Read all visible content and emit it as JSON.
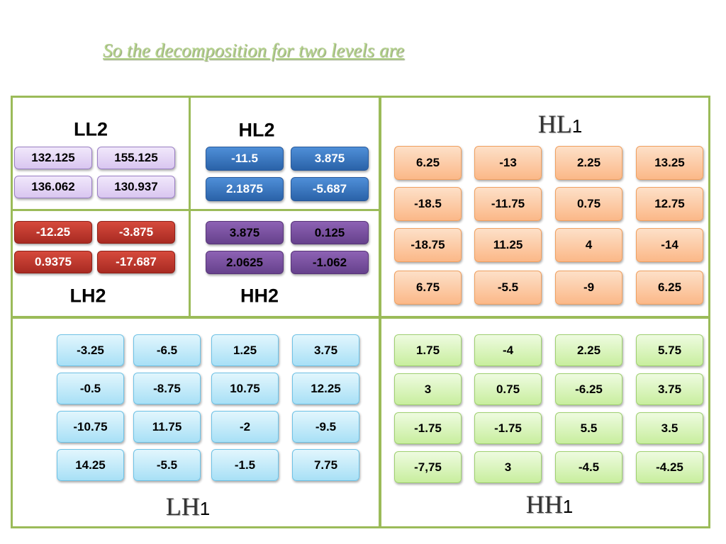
{
  "title": "So the decomposition for two levels are",
  "blocks": [
    {
      "label": "LL2",
      "rows": [
        [
          "132.125",
          "155.125"
        ],
        [
          "136.062",
          "130.937"
        ]
      ]
    },
    {
      "label": "HL2",
      "rows": [
        [
          "-11.5",
          "3.875"
        ],
        [
          "2.1875",
          "-5.687"
        ]
      ]
    },
    {
      "label": "LH2",
      "rows": [
        [
          "-12.25",
          "-3.875"
        ],
        [
          "0.9375",
          "-17.687"
        ]
      ]
    },
    {
      "label": "HH2",
      "rows": [
        [
          "3.875",
          "0.125"
        ],
        [
          "2.0625",
          "-1.062"
        ]
      ]
    },
    {
      "label": "HL",
      "suffix": "1",
      "rows": [
        [
          "6.25",
          "-13",
          "2.25",
          "13.25"
        ],
        [
          "-18.5",
          "-11.75",
          "0.75",
          "12.75"
        ],
        [
          "-18.75",
          "11.25",
          "4",
          "-14"
        ],
        [
          "6.75",
          "-5.5",
          "-9",
          "6.25"
        ]
      ]
    },
    {
      "label": "LH",
      "suffix": "1",
      "rows": [
        [
          "-3.25",
          "-6.5",
          "1.25",
          "3.75"
        ],
        [
          "-0.5",
          "-8.75",
          "10.75",
          "12.25"
        ],
        [
          "-10.75",
          "11.75",
          "-2",
          "-9.5"
        ],
        [
          "14.25",
          "-5.5",
          "-1.5",
          "7.75"
        ]
      ]
    },
    {
      "label": "HH",
      "suffix": "1",
      "rows": [
        [
          "1.75",
          "-4",
          "2.25",
          "5.75"
        ],
        [
          "3",
          "0.75",
          "-6.25",
          "3.75"
        ],
        [
          "-1.75",
          "-1.75",
          "5.5",
          "3.5"
        ],
        [
          "-7,75",
          "3",
          "-4.5",
          "-4.25"
        ]
      ]
    }
  ]
}
